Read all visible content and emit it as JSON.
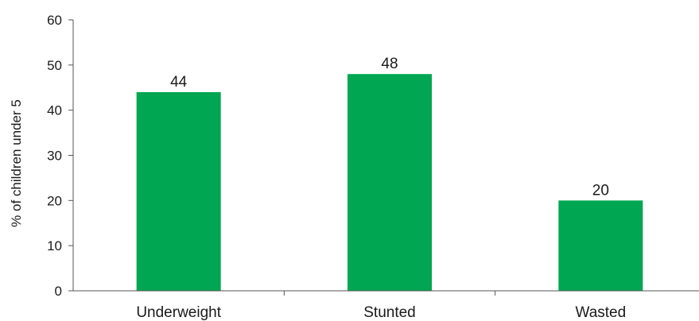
{
  "chart_data": {
    "type": "bar",
    "categories": [
      "Underweight",
      "Stunted",
      "Wasted"
    ],
    "values": [
      44,
      48,
      20
    ],
    "data_labels": [
      "44",
      "48",
      "20"
    ],
    "title": "",
    "xlabel": "",
    "ylabel": "% of children under 5",
    "ylim": [
      0,
      60
    ],
    "yticks": [
      0,
      10,
      20,
      30,
      40,
      50,
      60
    ],
    "ytick_labels": [
      "0",
      "10",
      "20",
      "30",
      "40",
      "50",
      "60"
    ],
    "grid": false,
    "legend": "none",
    "bar_color": "#00a651"
  }
}
